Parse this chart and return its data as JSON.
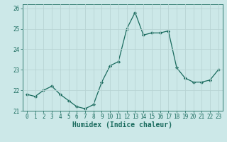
{
  "x": [
    0,
    1,
    2,
    3,
    4,
    5,
    6,
    7,
    8,
    9,
    10,
    11,
    12,
    13,
    14,
    15,
    16,
    17,
    18,
    19,
    20,
    21,
    22,
    23
  ],
  "y": [
    21.8,
    21.7,
    22.0,
    22.2,
    21.8,
    21.5,
    21.2,
    21.1,
    21.3,
    22.4,
    23.2,
    23.4,
    25.0,
    25.8,
    24.7,
    24.8,
    24.8,
    24.9,
    23.1,
    22.6,
    22.4,
    22.4,
    22.5,
    23.0
  ],
  "line_color": "#1a6b5e",
  "marker": "D",
  "marker_size": 2.2,
  "bg_color": "#cce8e8",
  "grid_color": "#b8d4d4",
  "xlabel": "Humidex (Indice chaleur)",
  "xlim": [
    -0.5,
    23.5
  ],
  "ylim": [
    21.0,
    26.2
  ],
  "yticks": [
    21,
    22,
    23,
    24,
    25,
    26
  ],
  "xticks": [
    0,
    1,
    2,
    3,
    4,
    5,
    6,
    7,
    8,
    9,
    10,
    11,
    12,
    13,
    14,
    15,
    16,
    17,
    18,
    19,
    20,
    21,
    22,
    23
  ],
  "tick_color": "#1a6b5e",
  "label_fontsize": 6.0,
  "tick_fontsize": 5.5,
  "xlabel_fontsize": 7.0
}
